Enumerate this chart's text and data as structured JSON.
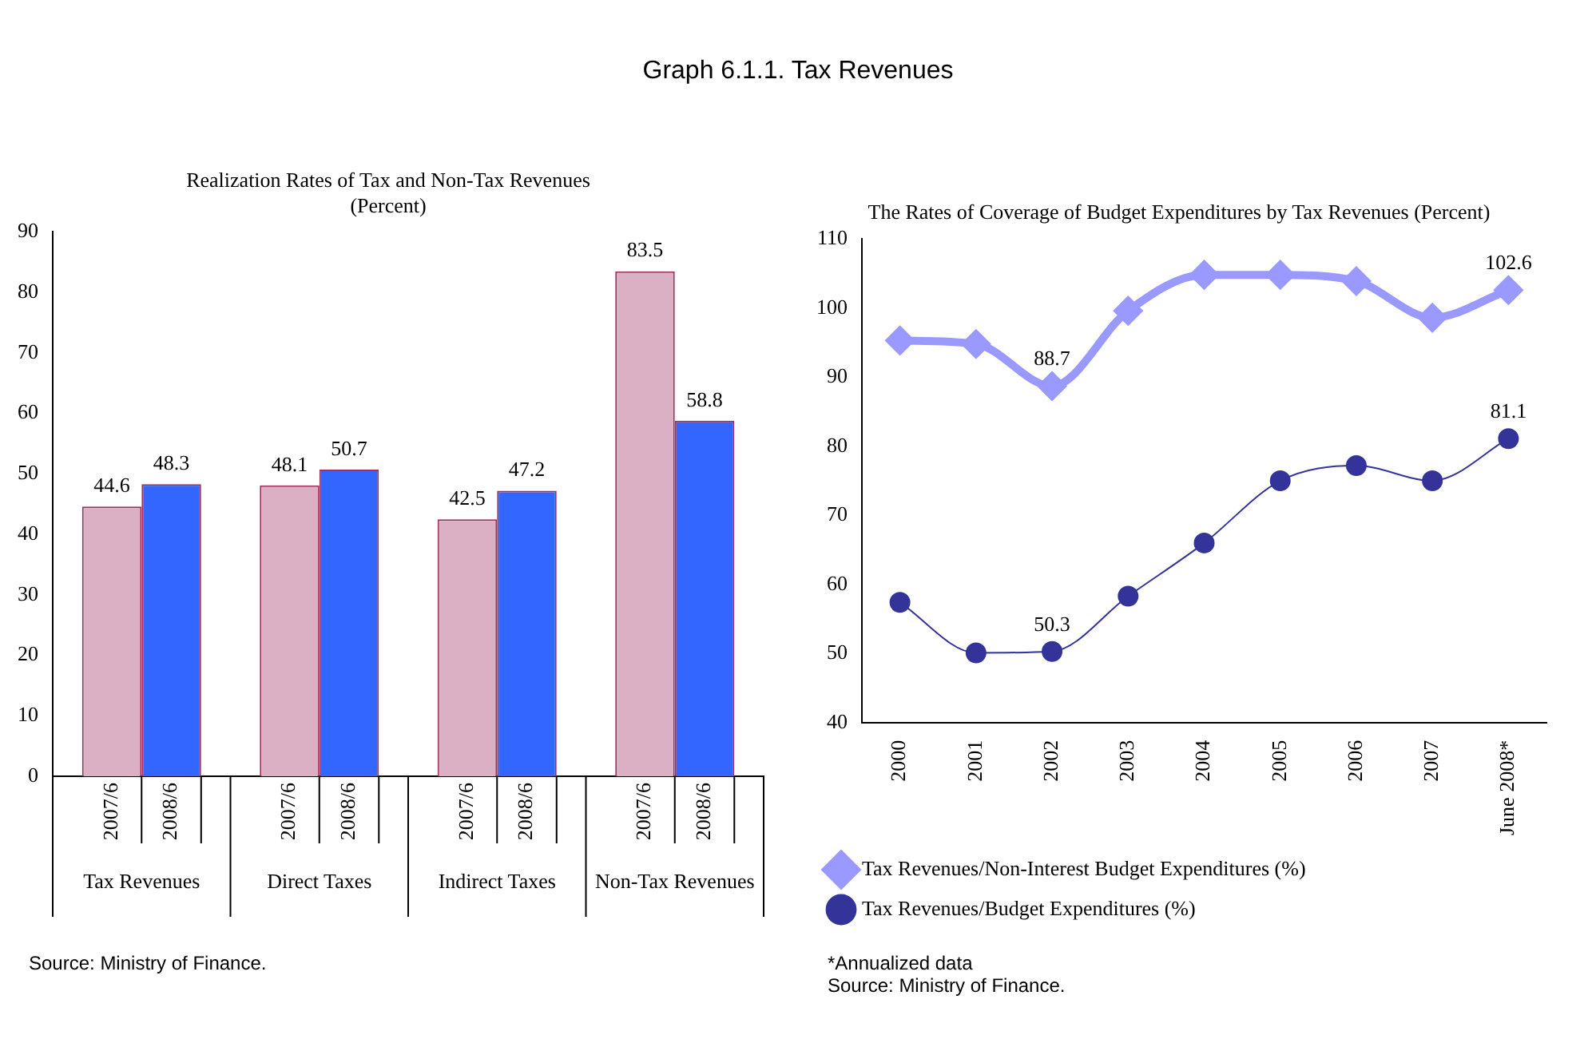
{
  "chart_data": [
    {
      "type": "bar",
      "title": "Graph 6.1.1. Tax Revenues",
      "subtitle": "Realization Rates of Tax and Non-Tax Revenues\n(Percent)",
      "categories": [
        "Tax Revenues",
        "Direct Taxes",
        "Indirect Taxes",
        "Non-Tax Revenues"
      ],
      "series": [
        {
          "name": "2007/6",
          "color": "#dcb0c4",
          "values": [
            44.6,
            48.1,
            42.5,
            83.5
          ]
        },
        {
          "name": "2008/6",
          "color": "#3366ff",
          "values": [
            48.3,
            50.7,
            47.2,
            58.8
          ]
        }
      ],
      "ylim": [
        0,
        90
      ],
      "yticks": [
        0,
        10,
        20,
        30,
        40,
        50,
        60,
        70,
        80,
        90
      ],
      "grid": false,
      "legend": false,
      "data_labels": true,
      "annotations": [
        "Source: Ministry of Finance."
      ]
    },
    {
      "type": "line",
      "title": "The Rates of Coverage of Budget Expenditures by Tax Revenues (Percent)",
      "categories": [
        "2000",
        "2001",
        "2002",
        "2003",
        "2004",
        "2005",
        "2006",
        "2007",
        "June 2008*"
      ],
      "series": [
        {
          "name": "Tax Revenues/Non-Interest Budget Expenditures (%)",
          "color": "#9999ff",
          "marker": "diamond",
          "values": [
            95.3,
            94.8,
            88.7,
            99.6,
            104.8,
            104.8,
            103.9,
            98.6,
            102.6
          ],
          "value_labels": [
            null,
            null,
            "88.7",
            null,
            null,
            null,
            null,
            null,
            "102.6"
          ]
        },
        {
          "name": "Tax Revenues/Budget Expenditures (%)",
          "color": "#333399",
          "marker": "circle",
          "values": [
            57.4,
            50.1,
            50.3,
            58.3,
            66.0,
            75.0,
            77.2,
            75.0,
            81.1
          ],
          "value_labels": [
            null,
            null,
            "50.3",
            null,
            null,
            null,
            null,
            null,
            "81.1"
          ]
        }
      ],
      "ylim": [
        40,
        110
      ],
      "yticks": [
        40,
        50,
        60,
        70,
        80,
        90,
        100,
        110
      ],
      "grid": false,
      "legend": "bottom",
      "annotations": [
        "*Annualized data",
        "Source: Ministry of Finance."
      ]
    }
  ]
}
